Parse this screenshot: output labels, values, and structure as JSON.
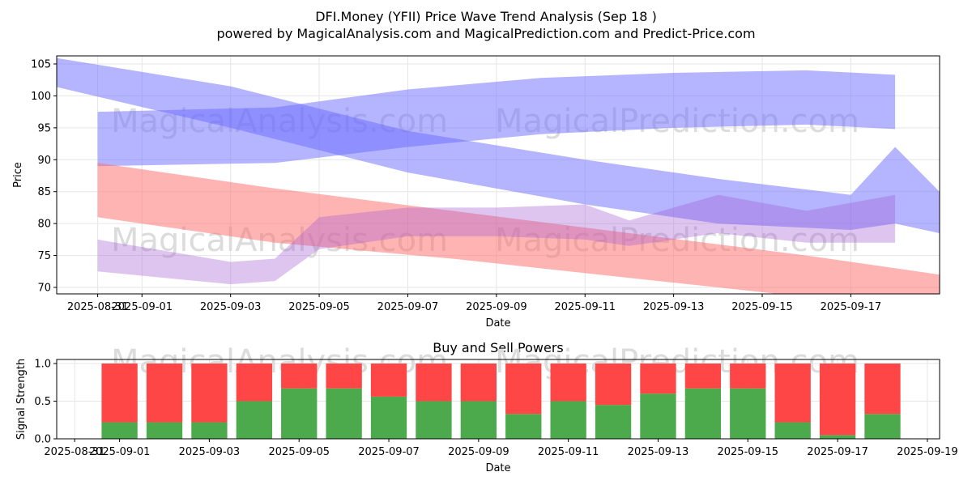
{
  "title_line1": "DFI.Money (YFII) Price Wave Trend Analysis (Sep 18 )",
  "title_line2": "powered by MagicalAnalysis.com and MagicalPrediction.com and Predict-Price.com",
  "watermark_left": "MagicalAnalysis.com",
  "watermark_right": "MagicalPrediction.com",
  "colors": {
    "blue_band": "#6a6aff",
    "red_band": "#ff6a6a",
    "buy": "#4caa4c",
    "sell": "#ff4646",
    "watermark": "#d9d9d9"
  },
  "chart_data": [
    {
      "type": "area",
      "title": "",
      "xlabel": "Date",
      "ylabel": "Price",
      "x_ticks": [
        "2025-08-31",
        "2025-09-01",
        "2025-09-03",
        "2025-09-05",
        "2025-09-07",
        "2025-09-09",
        "2025-09-11",
        "2025-09-13",
        "2025-09-15",
        "2025-09-17"
      ],
      "y_ticks": [
        70,
        75,
        80,
        85,
        90,
        95,
        100,
        105
      ],
      "xlim": [
        "2025-08-30",
        "2025-09-19"
      ],
      "ylim": [
        69,
        106
      ],
      "grid": true,
      "bands": [
        {
          "color": "blue",
          "opacity": 0.5,
          "dates": [
            "2025-08-31",
            "2025-09-04",
            "2025-09-07",
            "2025-09-10",
            "2025-09-13",
            "2025-09-16",
            "2025-09-18"
          ],
          "upper": [
            97.5,
            98.2,
            101,
            102.8,
            103.6,
            104,
            103.3
          ],
          "lower": [
            89,
            89.5,
            92,
            94,
            95,
            95.5,
            94.8
          ]
        },
        {
          "color": "blue",
          "opacity": 0.5,
          "dates": [
            "2025-08-30",
            "2025-09-03",
            "2025-09-07",
            "2025-09-11",
            "2025-09-14",
            "2025-09-17",
            "2025-09-18",
            "2025-09-19"
          ],
          "upper": [
            106,
            101.5,
            94.5,
            90,
            87,
            84.5,
            92,
            85
          ],
          "lower": [
            101.5,
            95,
            88,
            83,
            80,
            79,
            80,
            78.5
          ]
        },
        {
          "color": "red",
          "opacity": 0.5,
          "dates": [
            "2025-08-31",
            "2025-09-04",
            "2025-09-08",
            "2025-09-12",
            "2025-09-16",
            "2025-09-19"
          ],
          "upper": [
            89.5,
            85.5,
            82,
            78.5,
            75,
            72
          ],
          "lower": [
            81,
            77,
            74.5,
            71.5,
            68.5,
            65.5
          ]
        },
        {
          "color": "purple",
          "opacity": 0.35,
          "dates": [
            "2025-08-31",
            "2025-09-03",
            "2025-09-04",
            "2025-09-05",
            "2025-09-07",
            "2025-09-09",
            "2025-09-11",
            "2025-09-12",
            "2025-09-14",
            "2025-09-16",
            "2025-09-18"
          ],
          "upper": [
            77.5,
            74,
            74.5,
            81,
            82.5,
            82.5,
            83,
            80.5,
            84.5,
            82,
            84.5
          ],
          "lower": [
            72.5,
            70.5,
            71,
            76,
            78,
            78,
            77.5,
            76.5,
            78.5,
            77,
            77
          ]
        }
      ]
    },
    {
      "type": "bar",
      "title": "Buy and Sell Powers",
      "xlabel": "Date",
      "ylabel": "Signal Strength",
      "x_ticks": [
        "2025-08-31",
        "2025-09-01",
        "2025-09-03",
        "2025-09-05",
        "2025-09-07",
        "2025-09-09",
        "2025-09-11",
        "2025-09-13",
        "2025-09-15",
        "2025-09-17",
        "2025-09-19"
      ],
      "y_ticks": [
        "0.0",
        "0.5",
        "1.0"
      ],
      "ylim": [
        0,
        1.05
      ],
      "grid": true,
      "categories": [
        "2025-09-01",
        "2025-09-02",
        "2025-09-03",
        "2025-09-04",
        "2025-09-05",
        "2025-09-06",
        "2025-09-07",
        "2025-09-08",
        "2025-09-09",
        "2025-09-10",
        "2025-09-11",
        "2025-09-12",
        "2025-09-13",
        "2025-09-14",
        "2025-09-15",
        "2025-09-16",
        "2025-09-17",
        "2025-09-18"
      ],
      "series": [
        {
          "name": "Buy",
          "values": [
            0.22,
            0.22,
            0.22,
            0.5,
            0.67,
            0.67,
            0.56,
            0.5,
            0.5,
            0.33,
            0.5,
            0.45,
            0.6,
            0.67,
            0.67,
            0.22,
            0.05,
            0.33
          ]
        },
        {
          "name": "Sell",
          "values": [
            0.78,
            0.78,
            0.78,
            0.5,
            0.33,
            0.33,
            0.44,
            0.5,
            0.5,
            0.67,
            0.5,
            0.55,
            0.4,
            0.33,
            0.33,
            0.78,
            0.95,
            0.67
          ]
        }
      ]
    }
  ]
}
